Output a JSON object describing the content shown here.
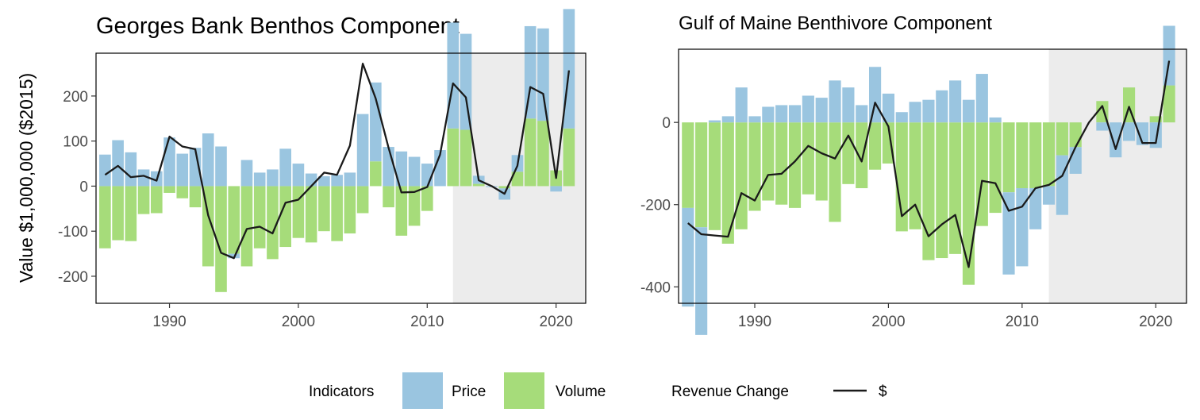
{
  "ylabel": "Value $1,000,000 ($2015)",
  "legend": {
    "title": "Indicators",
    "price_label": "Price",
    "volume_label": "Volume",
    "line_title": "Revenue Change",
    "line_label": "$"
  },
  "colors": {
    "price": "#9ac5e0",
    "volume": "#a6dc7a",
    "line": "#1a1a1a",
    "shade": "#ececec"
  },
  "chart_data": [
    {
      "type": "bar",
      "title": "Georges Bank Benthos Component",
      "xlim": [
        1984.3,
        2022.3
      ],
      "ylim": [
        -260,
        295
      ],
      "xticks": [
        1990,
        2000,
        2010,
        2020
      ],
      "yticks": [
        -200,
        -100,
        0,
        100,
        200
      ],
      "shaded_region": [
        2012,
        2022.3
      ],
      "years": [
        1985,
        1986,
        1987,
        1988,
        1989,
        1990,
        1991,
        1992,
        1993,
        1994,
        1995,
        1996,
        1997,
        1998,
        1999,
        2000,
        2001,
        2002,
        2003,
        2004,
        2005,
        2006,
        2007,
        2008,
        2009,
        2010,
        2011,
        2012,
        2013,
        2014,
        2015,
        2016,
        2017,
        2018,
        2019,
        2020,
        2021
      ],
      "series": [
        {
          "name": "Price",
          "values": [
            70,
            102,
            75,
            37,
            33,
            108,
            72,
            85,
            117,
            88,
            -10,
            58,
            30,
            37,
            83,
            50,
            28,
            22,
            25,
            30,
            160,
            175,
            87,
            77,
            65,
            50,
            80,
            235,
            213,
            18,
            -2,
            -25,
            37,
            205,
            205,
            -12,
            265
          ]
        },
        {
          "name": "Volume",
          "values": [
            -138,
            -120,
            -122,
            -62,
            -60,
            -15,
            -27,
            -47,
            -178,
            -235,
            -150,
            -178,
            -138,
            -162,
            -135,
            -115,
            -125,
            -100,
            -122,
            -105,
            -60,
            55,
            -47,
            -110,
            -88,
            -55,
            0,
            128,
            125,
            5,
            0,
            -5,
            32,
            150,
            145,
            35,
            128
          ]
        },
        {
          "name": "$",
          "values": [
            25,
            45,
            20,
            23,
            12,
            110,
            88,
            82,
            -65,
            -148,
            -160,
            -95,
            -90,
            -105,
            -37,
            -30,
            0,
            30,
            25,
            90,
            272,
            195,
            85,
            -14,
            -13,
            -2,
            70,
            228,
            197,
            13,
            0,
            -17,
            45,
            220,
            205,
            18,
            257
          ]
        }
      ]
    },
    {
      "type": "bar",
      "title": "Gulf of Maine Benthivore Component",
      "xlim": [
        1984.3,
        2022.3
      ],
      "ylim": [
        -440,
        178
      ],
      "xticks": [
        1990,
        2000,
        2010,
        2020
      ],
      "yticks": [
        -400,
        -200,
        0
      ],
      "shaded_region": [
        2012,
        2022.3
      ],
      "years": [
        1985,
        1986,
        1987,
        1988,
        1989,
        1990,
        1991,
        1992,
        1993,
        1994,
        1995,
        1996,
        1997,
        1998,
        1999,
        2000,
        2001,
        2002,
        2003,
        2004,
        2005,
        2006,
        2007,
        2008,
        2009,
        2010,
        2011,
        2012,
        2013,
        2014,
        2015,
        2016,
        2017,
        2018,
        2019,
        2020,
        2021
      ],
      "series": [
        {
          "name": "Price",
          "values": [
            -240,
            -262,
            5,
            15,
            85,
            15,
            38,
            42,
            42,
            65,
            60,
            102,
            85,
            42,
            135,
            70,
            25,
            50,
            55,
            78,
            102,
            55,
            118,
            12,
            -200,
            -190,
            -100,
            -45,
            -145,
            -65,
            0,
            -20,
            -85,
            -45,
            -55,
            -62,
            145
          ]
        },
        {
          "name": "Volume",
          "values": [
            -208,
            -255,
            -262,
            -295,
            -260,
            -215,
            -190,
            -200,
            -208,
            -175,
            -190,
            -242,
            -150,
            -160,
            -115,
            -100,
            -265,
            -260,
            -335,
            -330,
            -320,
            -395,
            -252,
            -220,
            -170,
            -160,
            -160,
            -155,
            -80,
            -60,
            0,
            52,
            0,
            85,
            0,
            15,
            90
          ]
        },
        {
          "name": "$",
          "values": [
            -245,
            -272,
            -275,
            -278,
            -172,
            -190,
            -128,
            -125,
            -95,
            -57,
            -75,
            -88,
            -32,
            -95,
            48,
            -10,
            -228,
            -200,
            -277,
            -248,
            -225,
            -352,
            -142,
            -148,
            -215,
            -205,
            -160,
            -152,
            -130,
            -60,
            0,
            40,
            -65,
            38,
            -50,
            -50,
            150
          ]
        }
      ]
    }
  ]
}
